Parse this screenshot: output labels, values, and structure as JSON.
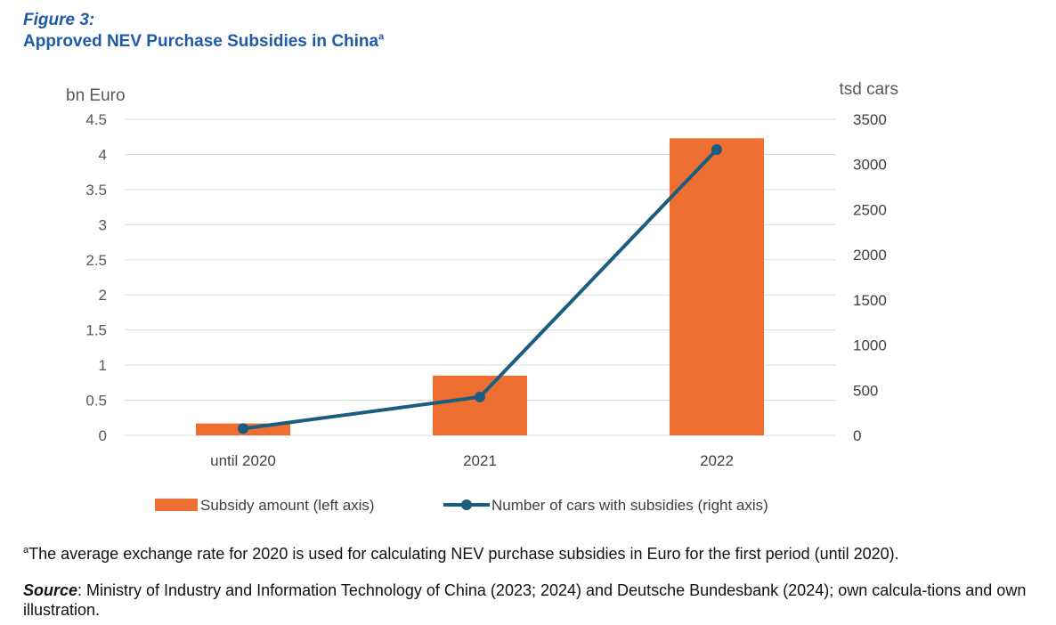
{
  "figure": {
    "label": "Figure 3:",
    "title": "Approved NEV Purchase Subsidies in China",
    "title_sup": "a"
  },
  "colors": {
    "title": "#1f5aa6",
    "bar": "#ed7032",
    "line": "#1b5d80",
    "grid": "#d9d9d9",
    "axis_text": "#595959"
  },
  "chart_data": {
    "type": "bar",
    "categories": [
      "until 2020",
      "2021",
      "2022"
    ],
    "series": [
      {
        "name": "Subsidy amount (left axis)",
        "type": "bar",
        "axis": "left",
        "values": [
          0.17,
          0.85,
          4.23
        ]
      },
      {
        "name": "Number of cars with subsidies (right axis)",
        "type": "line",
        "axis": "right",
        "values": [
          75,
          425,
          3165
        ]
      }
    ],
    "y_left": {
      "label": "bn Euro",
      "ylim": [
        0,
        4.5
      ],
      "ticks": [
        "0",
        "0.5",
        "1",
        "1.5",
        "2",
        "2.5",
        "3",
        "3.5",
        "4",
        "4.5"
      ],
      "tick_values": [
        0,
        0.5,
        1,
        1.5,
        2,
        2.5,
        3,
        3.5,
        4,
        4.5
      ]
    },
    "y_right": {
      "label": "tsd cars",
      "ylim": [
        0,
        3500
      ],
      "ticks": [
        "0",
        "500",
        "1000",
        "1500",
        "2000",
        "2500",
        "3000",
        "3500"
      ],
      "tick_values": [
        0,
        500,
        1000,
        1500,
        2000,
        2500,
        3000,
        3500
      ]
    },
    "grid": true,
    "legend": "bottom"
  },
  "footnote": {
    "sup": "a",
    "text": "The average exchange rate for 2020 is used for calculating NEV purchase subsidies in Euro for the first period (until 2020)."
  },
  "source": {
    "label": "Source",
    "text": ": Ministry of Industry and Information Technology of China (2023; 2024) and Deutsche Bundesbank (2024); own calcula-tions and own illustration."
  }
}
